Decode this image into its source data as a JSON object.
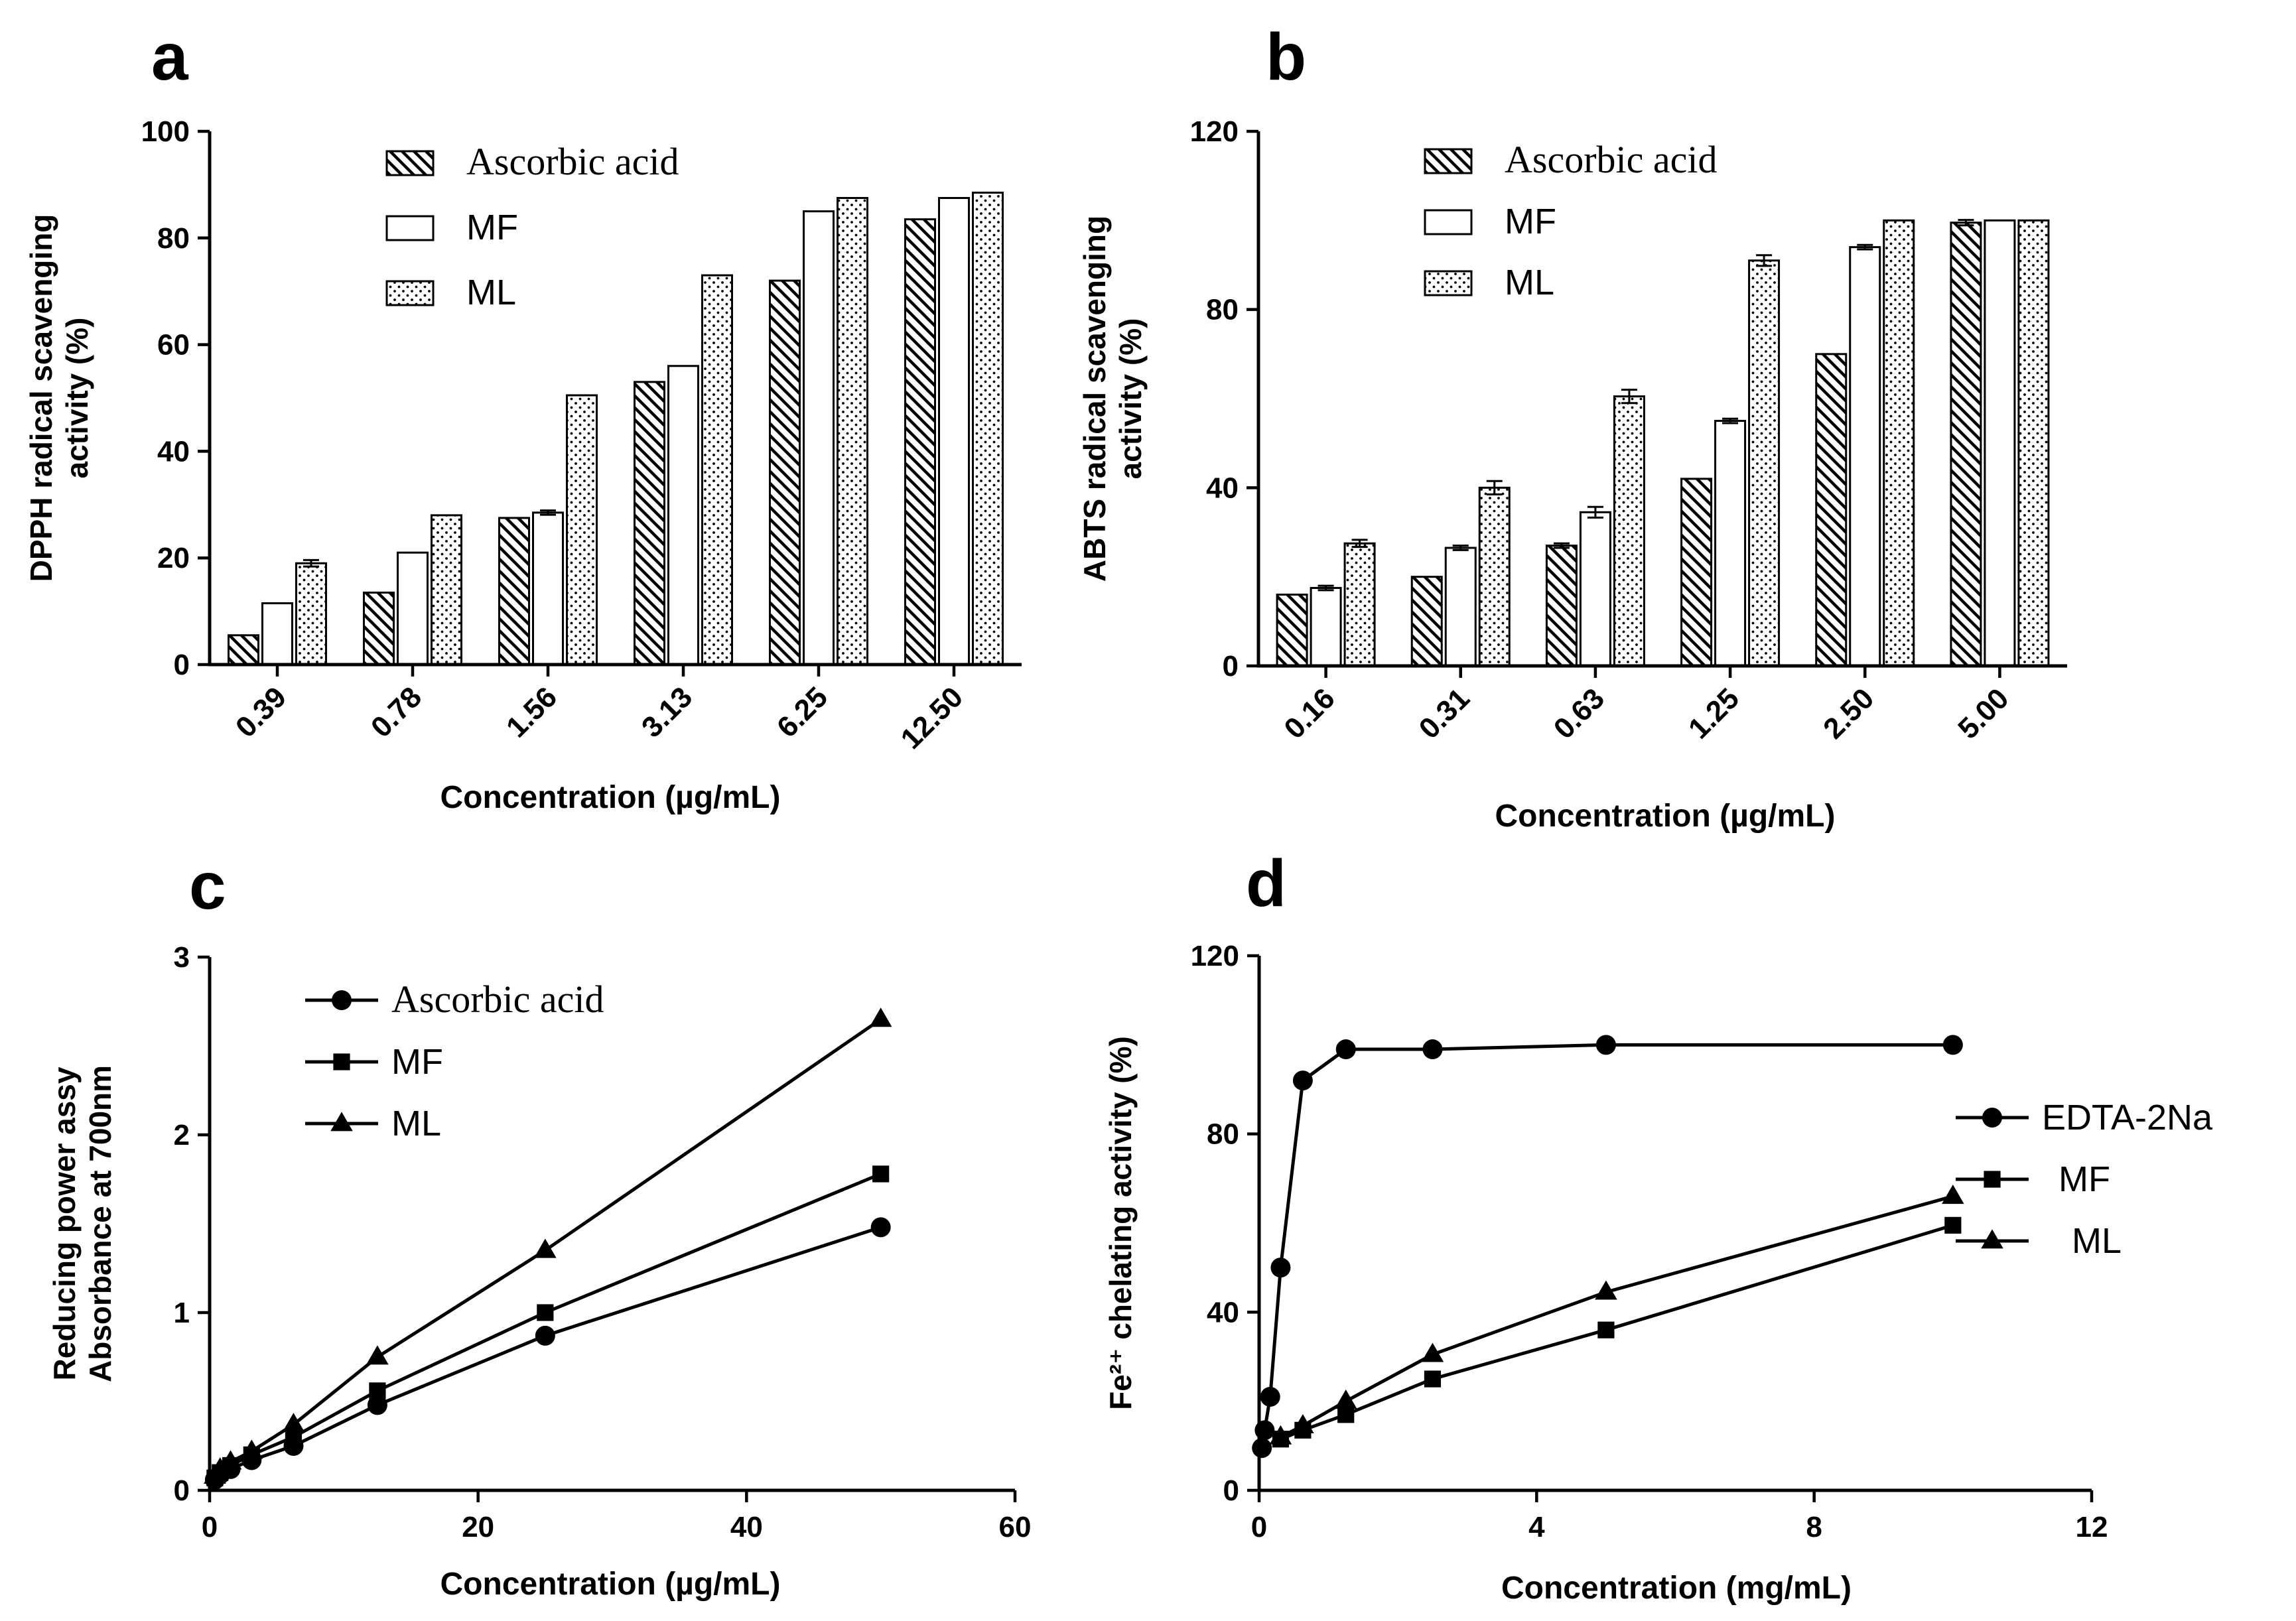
{
  "chart_data": [
    {
      "panel_label": "a",
      "type": "bar",
      "title": "",
      "xlabel": "Concentration (µg/mL)",
      "ylabel_lines": [
        "DPPH radical scavenging",
        "activity (%)"
      ],
      "categories": [
        "0.39",
        "0.78",
        "1.56",
        "3.13",
        "6.25",
        "12.50"
      ],
      "ylim": [
        0,
        100
      ],
      "yticks": [
        0,
        20,
        40,
        60,
        80,
        100
      ],
      "legend_position": "top-center",
      "series": [
        {
          "name": "Ascorbic acid",
          "pattern": "hatch",
          "values": [
            5.5,
            13.5,
            27.5,
            53,
            72,
            83.5
          ],
          "errors": [
            0,
            0,
            0,
            0,
            0,
            0
          ]
        },
        {
          "name": "MF",
          "pattern": "open",
          "values": [
            11.5,
            21,
            28.5,
            56,
            85,
            87.5
          ],
          "errors": [
            0,
            0,
            0.4,
            0,
            0,
            0
          ]
        },
        {
          "name": "ML",
          "pattern": "dots",
          "values": [
            19,
            28,
            50.5,
            73,
            87.5,
            88.5
          ],
          "errors": [
            0.6,
            0,
            0,
            0,
            0,
            0
          ]
        }
      ]
    },
    {
      "panel_label": "b",
      "type": "bar",
      "title": "",
      "xlabel": "Concentration (µg/mL)",
      "ylabel_lines": [
        "ABTS radical scavenging",
        "activity (%)"
      ],
      "categories": [
        "0.16",
        "0.31",
        "0.63",
        "1.25",
        "2.50",
        "5.00"
      ],
      "ylim": [
        0,
        120
      ],
      "yticks": [
        0,
        40,
        80,
        120
      ],
      "legend_position": "top-center",
      "series": [
        {
          "name": "Ascorbic acid",
          "pattern": "hatch",
          "values": [
            16,
            20,
            27,
            42,
            70,
            99.5
          ],
          "errors": [
            0,
            0,
            0.5,
            0,
            0,
            0.6
          ]
        },
        {
          "name": "MF",
          "pattern": "open",
          "values": [
            17.5,
            26.5,
            34.5,
            55,
            94,
            100
          ],
          "errors": [
            0.5,
            0.5,
            1.2,
            0.5,
            0.5,
            0
          ]
        },
        {
          "name": "ML",
          "pattern": "dots",
          "values": [
            27.5,
            40,
            60.5,
            91,
            100,
            100
          ],
          "errors": [
            0.8,
            1.5,
            1.5,
            1.2,
            0,
            0
          ]
        }
      ]
    },
    {
      "panel_label": "c",
      "type": "line",
      "title": "",
      "xlabel": "Concentration (µg/mL)",
      "ylabel_lines": [
        "Reducing power assy",
        "Absorbance at 700nm"
      ],
      "xlim": [
        0,
        60
      ],
      "xticks": [
        0,
        20,
        40,
        60
      ],
      "ylim": [
        0,
        3
      ],
      "yticks": [
        0,
        1,
        2,
        3
      ],
      "legend_position": "top-left",
      "series": [
        {
          "name": "Ascorbic acid",
          "marker": "circle",
          "x": [
            0.39,
            0.78,
            1.56,
            3.13,
            6.25,
            12.5,
            25,
            50
          ],
          "y": [
            0.06,
            0.09,
            0.12,
            0.17,
            0.25,
            0.48,
            0.87,
            1.48
          ]
        },
        {
          "name": "MF",
          "marker": "square",
          "x": [
            0.39,
            0.78,
            1.56,
            3.13,
            6.25,
            12.5,
            25,
            50
          ],
          "y": [
            0.07,
            0.1,
            0.14,
            0.2,
            0.3,
            0.56,
            1.0,
            1.78
          ]
        },
        {
          "name": "ML",
          "marker": "triangle",
          "x": [
            0.39,
            0.78,
            1.56,
            3.13,
            6.25,
            12.5,
            25,
            50
          ],
          "y": [
            0.08,
            0.12,
            0.16,
            0.22,
            0.37,
            0.75,
            1.35,
            2.65
          ]
        }
      ]
    },
    {
      "panel_label": "d",
      "type": "line",
      "title": "",
      "xlabel": "Concentration (mg/mL)",
      "ylabel_lines": [
        "Fe²⁺ chelating activity (%)"
      ],
      "xlim": [
        0,
        12
      ],
      "xticks": [
        0,
        4,
        8,
        12
      ],
      "ylim": [
        0,
        120
      ],
      "yticks": [
        0,
        40,
        80,
        120
      ],
      "legend_position": "right",
      "series": [
        {
          "name": "EDTA-2Na",
          "marker": "circle",
          "x": [
            0.04,
            0.08,
            0.16,
            0.31,
            0.63,
            1.25,
            2.5,
            5,
            10
          ],
          "y": [
            9.5,
            13.5,
            21,
            50,
            92,
            99,
            99,
            100,
            100
          ]
        },
        {
          "name": "MF",
          "marker": "square",
          "x": [
            0.31,
            0.63,
            1.25,
            2.5,
            5,
            10
          ],
          "y": [
            11.5,
            13.5,
            17,
            25,
            36,
            59.5
          ]
        },
        {
          "name": "ML",
          "marker": "triangle",
          "x": [
            0.31,
            0.63,
            1.25,
            2.5,
            5,
            10
          ],
          "y": [
            12,
            14.5,
            20,
            30.5,
            44.5,
            66
          ]
        }
      ]
    }
  ]
}
